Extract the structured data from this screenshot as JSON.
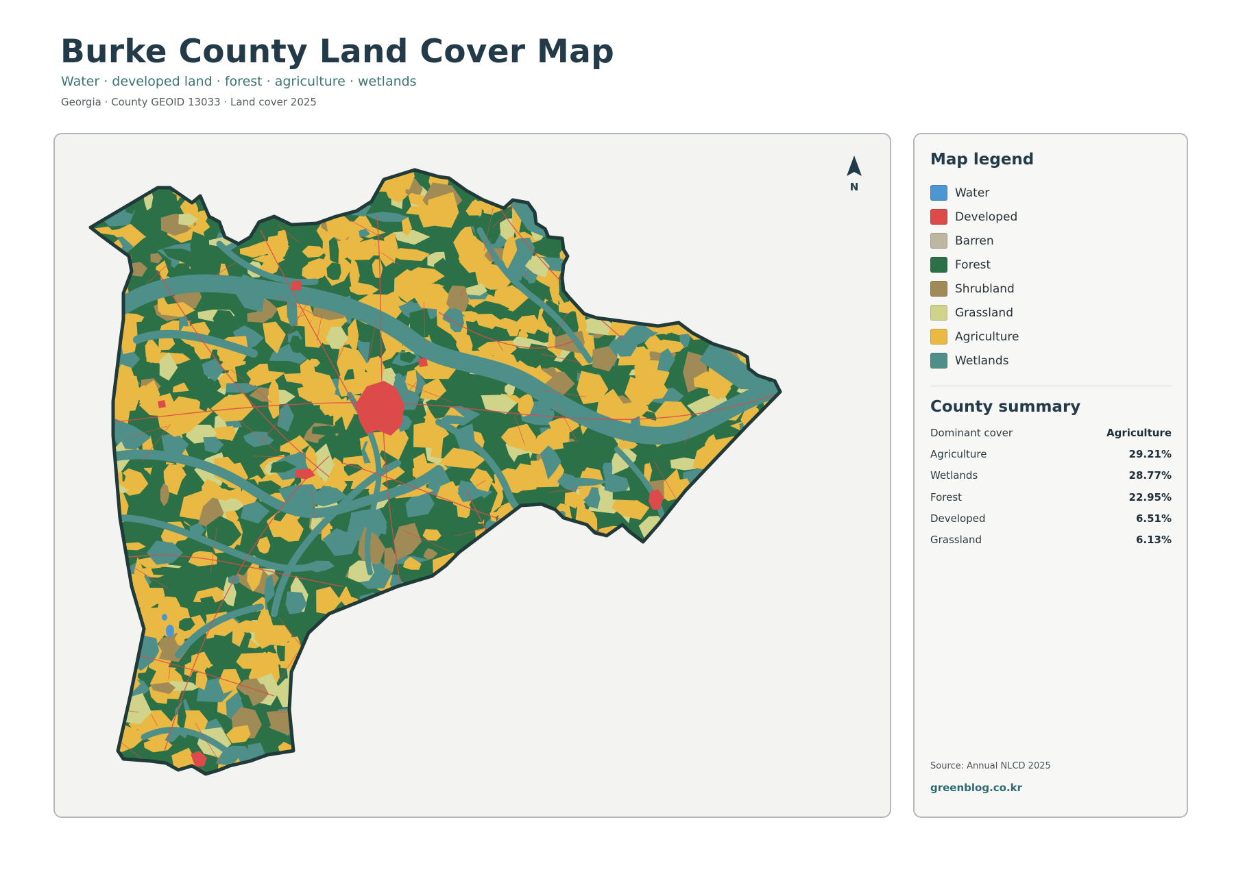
{
  "header": {
    "title": "Burke County Land Cover Map",
    "subtitle": "Water · developed land · forest · agriculture · wetlands",
    "meta": "Georgia · County GEOID 13033 · Land cover 2025"
  },
  "map": {
    "north_label": "N",
    "colors": {
      "water": "#4b96d3",
      "developed": "#dc4a4a",
      "forest": "#2c7048",
      "shrubland": "#a08a55",
      "grassland": "#cfd48a",
      "agriculture": "#eab944",
      "wetlands": "#4f8f8a",
      "outline": "#1f3a38"
    }
  },
  "legend": {
    "title": "Map legend",
    "items": [
      {
        "label": "Water",
        "color": "#4b96d3"
      },
      {
        "label": "Developed",
        "color": "#dc4a4a"
      },
      {
        "label": "Barren",
        "color": "#bdb6a1"
      },
      {
        "label": "Forest",
        "color": "#2c7048"
      },
      {
        "label": "Shrubland",
        "color": "#a08a55"
      },
      {
        "label": "Grassland",
        "color": "#cfd48a"
      },
      {
        "label": "Agriculture",
        "color": "#eab944"
      },
      {
        "label": "Wetlands",
        "color": "#4f8f8a"
      }
    ]
  },
  "summary": {
    "title": "County summary",
    "rows": [
      {
        "key": "Dominant cover",
        "value": "Agriculture"
      },
      {
        "key": "Agriculture",
        "value": "29.21%"
      },
      {
        "key": "Wetlands",
        "value": "28.77%"
      },
      {
        "key": "Forest",
        "value": "22.95%"
      },
      {
        "key": "Developed",
        "value": "6.51%"
      },
      {
        "key": "Grassland",
        "value": "6.13%"
      }
    ]
  },
  "footer": {
    "source": "Source: Annual NLCD 2025",
    "brand": "greenblog.co.kr"
  }
}
